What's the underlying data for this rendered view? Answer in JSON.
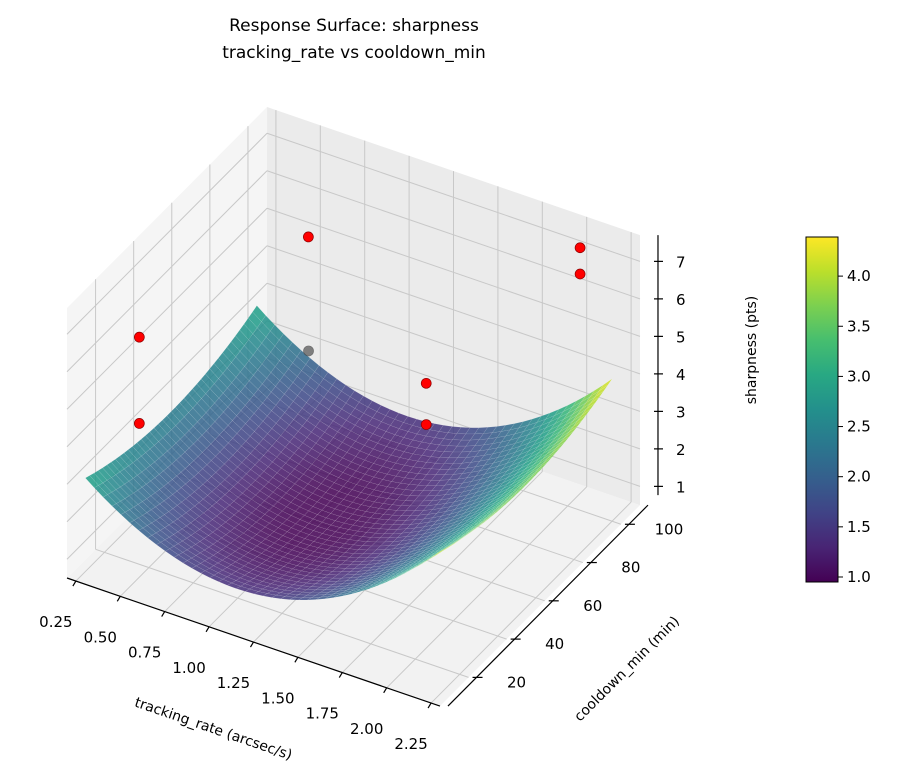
{
  "chart_data": {
    "type": "surface3d",
    "title": "Response Surface: sharpness",
    "subtitle": "tracking_rate vs cooldown_min",
    "xlabel": "tracking_rate (arcsec/s)",
    "ylabel": "cooldown_min (min)",
    "zlabel": "sharpness (pts)",
    "xlim": [
      0.2,
      2.3
    ],
    "ylim": [
      5,
      110
    ],
    "zlim": [
      0.5,
      7.7
    ],
    "xticks": [
      "0.25",
      "0.50",
      "0.75",
      "1.00",
      "1.25",
      "1.50",
      "1.75",
      "2.00",
      "2.25"
    ],
    "yticks": [
      "20",
      "40",
      "60",
      "80",
      "100"
    ],
    "zticks": [
      "1",
      "2",
      "3",
      "4",
      "5",
      "6",
      "7"
    ],
    "grid": true,
    "colormap": "viridis",
    "surface": {
      "x_range": [
        0.25,
        2.25
      ],
      "y_range": [
        10,
        100
      ],
      "model": "z = 0.9 + 2.17*(x-1.1)^2 + 0.00026*(y-55)^2"
    },
    "scatter": {
      "color": "#ff0000",
      "points": [
        {
          "x": 0.54,
          "y": 100,
          "z": 5.3
        },
        {
          "x": 2.07,
          "y": 100,
          "z": 7.5
        },
        {
          "x": 2.07,
          "y": 100,
          "z": 6.8
        },
        {
          "x": 0.5,
          "y": 15,
          "z": 6.9
        },
        {
          "x": 0.5,
          "y": 15,
          "z": 4.6
        },
        {
          "x": 0.97,
          "y": 60,
          "z": 5.0
        },
        {
          "x": 1.74,
          "y": 50,
          "z": 5.9
        },
        {
          "x": 1.74,
          "y": 50,
          "z": 4.8
        }
      ]
    },
    "colorbar": {
      "range": [
        0.95,
        4.39
      ],
      "ticks": [
        "1.0",
        "1.5",
        "2.0",
        "2.5",
        "3.0",
        "3.5",
        "4.0"
      ]
    }
  }
}
